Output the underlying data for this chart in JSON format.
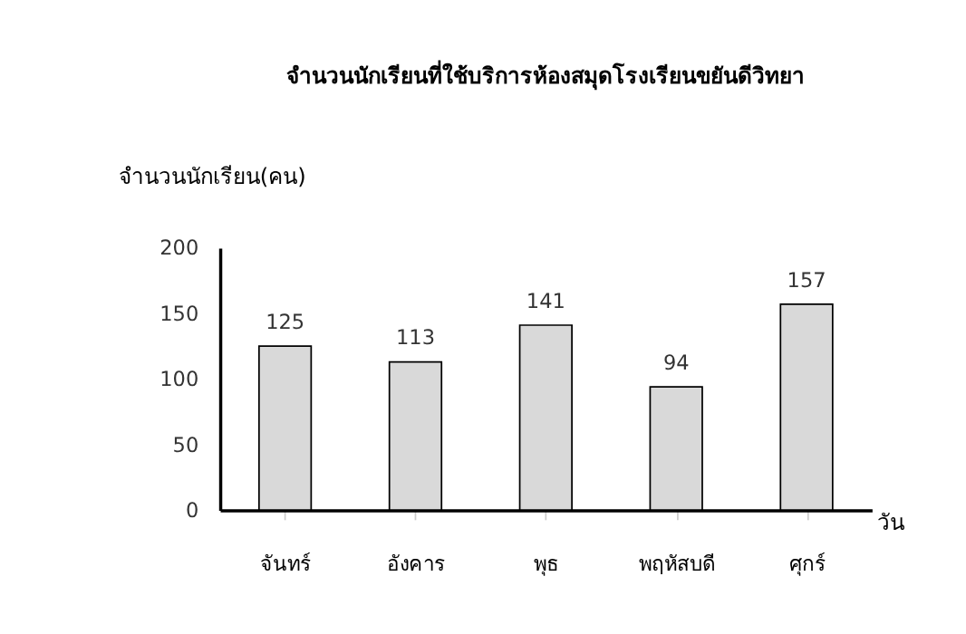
{
  "chart_data": {
    "type": "bar",
    "title": "จำนวนนักเรียนที่ใช้บริการห้องสมุดโรงเรียนขยันดีวิทยา",
    "ylabel": "จำนวนนักเรียน(คน)",
    "xlabel": "วัน",
    "categories": [
      "จันทร์",
      "อังคาร",
      "พุธ",
      "พฤหัสบดี",
      "ศุกร์"
    ],
    "values": [
      125,
      113,
      141,
      94,
      157
    ],
    "color": "#d9d9d9",
    "ylim": [
      0,
      200
    ],
    "yticks": [
      0,
      50,
      100,
      150,
      200
    ],
    "grid": false,
    "data_labels": true
  }
}
